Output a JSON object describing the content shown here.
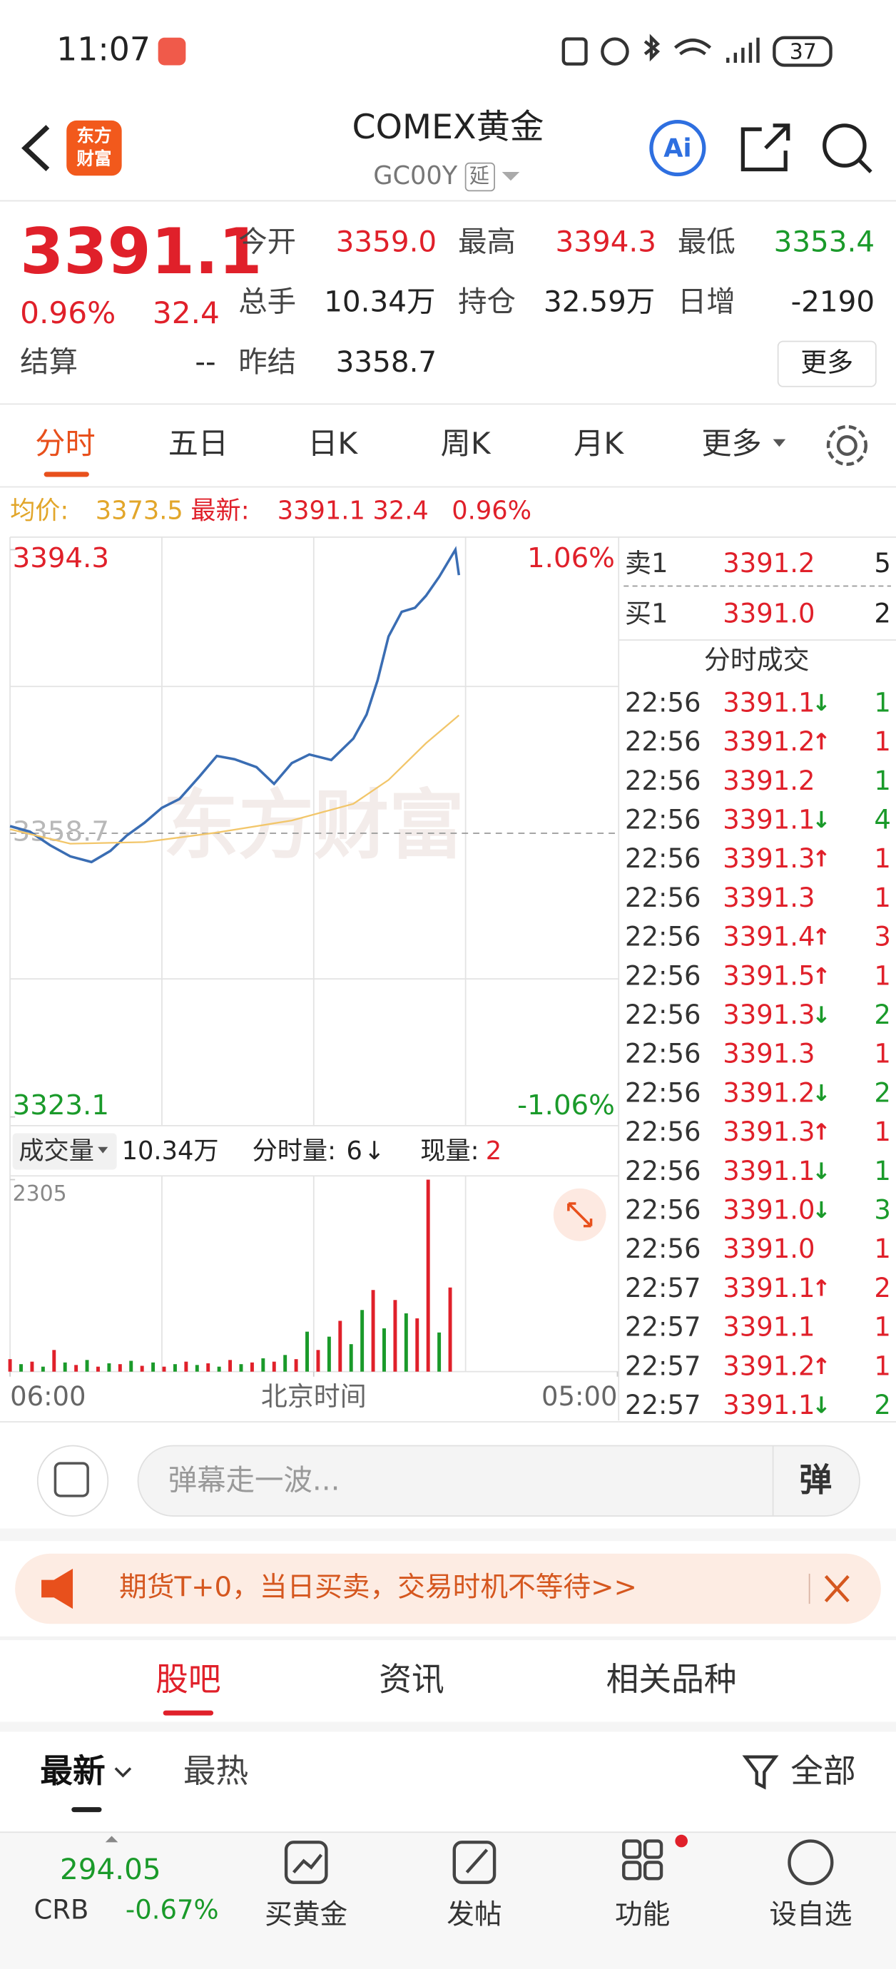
{
  "status_bar": {
    "time": "11:07",
    "battery": "37"
  },
  "header": {
    "logo": [
      "东方",
      "财富"
    ],
    "title": "COMEX黄金",
    "code": "GC00Y",
    "tag": "延",
    "ai_button": "Ai"
  },
  "quote": {
    "price": "3391.1",
    "change_pct": "0.96%",
    "change": "32.4",
    "fields": [
      {
        "label": "今开",
        "value": "3359.0"
      },
      {
        "label": "最高",
        "value": "3394.3"
      },
      {
        "label": "最低",
        "value": "3353.4"
      },
      {
        "label": "总手",
        "value": "10.34万"
      },
      {
        "label": "持仓",
        "value": "32.59万"
      },
      {
        "label": "日增",
        "value": "-2190"
      },
      {
        "label": "结算",
        "value": "--"
      },
      {
        "label": "昨结",
        "value": "3358.7"
      }
    ],
    "more": "更多"
  },
  "tabs": [
    "分时",
    "五日",
    "日K",
    "周K",
    "月K",
    "更多"
  ],
  "info_line": {
    "avg_label": "均价:",
    "avg": "3373.5",
    "latest_label": "最新:",
    "latest": "3391.1",
    "change": "32.4",
    "change_pct": "0.96%"
  },
  "chart_data": {
    "type": "line",
    "watermark": "东方财富",
    "xlim": [
      0,
      1380
    ],
    "xticks": [
      {
        "value": 0,
        "label": "06:00"
      },
      {
        "value": 690,
        "label": "北京时间"
      },
      {
        "value": 1380,
        "label": "05:00"
      }
    ],
    "ylim": [
      3323.1,
      3394.3
    ],
    "yticks": [
      3394.3,
      3358.7,
      3323.1
    ],
    "right_labels": [
      "1.06%",
      "-1.06%"
    ],
    "series": [
      {
        "color": "#3a6db3",
        "x": [
          0,
          45,
          91,
          137,
          185,
          228,
          265,
          305,
          345,
          385,
          430,
          470,
          510,
          560,
          600,
          640,
          680,
          730,
          780,
          810,
          835,
          860,
          890,
          920,
          945,
          975,
          1012,
          1020
        ],
        "values": [
          3359.6,
          3358.9,
          3357.2,
          3355.8,
          3355.1,
          3356.5,
          3358.4,
          3360.0,
          3361.9,
          3363.0,
          3365.8,
          3368.4,
          3368.0,
          3367.0,
          3364.9,
          3367.5,
          3368.6,
          3367.9,
          3370.6,
          3373.6,
          3377.9,
          3383.4,
          3386.5,
          3387.0,
          3388.5,
          3390.9,
          3394.3,
          3391.1
        ]
      },
      {
        "color": "#f2c66a",
        "x": [
          0,
          137,
          305,
          470,
          640,
          780,
          860,
          945,
          1020
        ],
        "values": [
          3359.2,
          3357.4,
          3357.6,
          3358.8,
          3360.3,
          3362.4,
          3365.4,
          3370.0,
          3373.5
        ]
      }
    ],
    "volume": {
      "ylim": [
        0,
        2305
      ],
      "yticks": [
        2305
      ],
      "x": [
        0,
        25,
        50,
        75,
        100,
        125,
        150,
        175,
        200,
        225,
        250,
        275,
        300,
        325,
        350,
        375,
        400,
        425,
        450,
        475,
        500,
        525,
        550,
        575,
        600,
        625,
        650,
        675,
        700,
        725,
        750,
        775,
        800,
        825,
        850,
        875,
        900,
        925,
        950,
        975,
        1000
      ],
      "values": [
        150,
        90,
        120,
        60,
        260,
        110,
        80,
        140,
        60,
        100,
        90,
        130,
        70,
        110,
        60,
        90,
        120,
        80,
        100,
        60,
        140,
        90,
        110,
        160,
        120,
        200,
        150,
        480,
        260,
        420,
        610,
        330,
        740,
        980,
        520,
        860,
        700,
        640,
        2305,
        470,
        1010
      ],
      "colors": [
        "#e0202a",
        "#1a9a2a",
        "#e0202a",
        "#1a9a2a",
        "#e0202a",
        "#1a9a2a",
        "#e0202a",
        "#1a9a2a",
        "#e0202a",
        "#1a9a2a",
        "#e0202a",
        "#1a9a2a",
        "#e0202a",
        "#1a9a2a",
        "#e0202a",
        "#1a9a2a",
        "#e0202a",
        "#1a9a2a",
        "#e0202a",
        "#1a9a2a",
        "#e0202a",
        "#1a9a2a",
        "#e0202a",
        "#1a9a2a",
        "#e0202a",
        "#1a9a2a",
        "#e0202a",
        "#1a9a2a",
        "#e0202a",
        "#1a9a2a",
        "#e0202a",
        "#1a9a2a",
        "#1a9a2a",
        "#e0202a",
        "#1a9a2a",
        "#e0202a",
        "#1a9a2a",
        "#e0202a",
        "#e0202a",
        "#1a9a2a",
        "#e0202a"
      ]
    }
  },
  "volume_bar": {
    "label": "成交量",
    "total": "10.34万",
    "minute_label": "分时量:",
    "minute": "6",
    "minute_arrow": "↓",
    "now_label": "现量:",
    "now": "2"
  },
  "order_book": [
    {
      "side": "卖1",
      "price": "3391.2",
      "vol": "5"
    },
    {
      "side": "买1",
      "price": "3391.0",
      "vol": "2"
    }
  ],
  "trades_title": "分时成交",
  "trades": [
    {
      "time": "22:56",
      "price": "3391.1",
      "arrow": "↓",
      "vol": "1",
      "side": "down"
    },
    {
      "time": "22:56",
      "price": "3391.2",
      "arrow": "↑",
      "vol": "1",
      "side": "up"
    },
    {
      "time": "22:56",
      "price": "3391.2",
      "vol": "1",
      "side": "down"
    },
    {
      "time": "22:56",
      "price": "3391.1",
      "arrow": "↓",
      "vol": "4",
      "side": "down"
    },
    {
      "time": "22:56",
      "price": "3391.3",
      "arrow": "↑",
      "vol": "1",
      "side": "up"
    },
    {
      "time": "22:56",
      "price": "3391.3",
      "vol": "1",
      "side": "up"
    },
    {
      "time": "22:56",
      "price": "3391.4",
      "arrow": "↑",
      "vol": "3",
      "side": "up"
    },
    {
      "time": "22:56",
      "price": "3391.5",
      "arrow": "↑",
      "vol": "1",
      "side": "up"
    },
    {
      "time": "22:56",
      "price": "3391.3",
      "arrow": "↓",
      "vol": "2",
      "side": "down"
    },
    {
      "time": "22:56",
      "price": "3391.3",
      "vol": "1",
      "side": "up"
    },
    {
      "time": "22:56",
      "price": "3391.2",
      "arrow": "↓",
      "vol": "2",
      "side": "down"
    },
    {
      "time": "22:56",
      "price": "3391.3",
      "arrow": "↑",
      "vol": "1",
      "side": "up"
    },
    {
      "time": "22:56",
      "price": "3391.1",
      "arrow": "↓",
      "vol": "1",
      "side": "down"
    },
    {
      "time": "22:56",
      "price": "3391.0",
      "arrow": "↓",
      "vol": "3",
      "side": "down"
    },
    {
      "time": "22:56",
      "price": "3391.0",
      "vol": "1",
      "side": "up"
    },
    {
      "time": "22:57",
      "price": "3391.1",
      "arrow": "↑",
      "vol": "2",
      "side": "up"
    },
    {
      "time": "22:57",
      "price": "3391.1",
      "vol": "1",
      "side": "up"
    },
    {
      "time": "22:57",
      "price": "3391.2",
      "arrow": "↑",
      "vol": "1",
      "side": "up"
    },
    {
      "time": "22:57",
      "price": "3391.1",
      "arrow": "↓",
      "vol": "2",
      "side": "down"
    }
  ],
  "comment_bar": {
    "placeholder": "弹幕走一波...",
    "button": "弹"
  },
  "banner": "期货T+0，当日买卖，交易时机不等待>>",
  "section_tabs": [
    "股吧",
    "资讯",
    "相关品种"
  ],
  "feed_tabs": [
    "最新",
    "最热"
  ],
  "filter": "全部",
  "bottom_bar": {
    "ticker_value": "294.05",
    "ticker_name": "CRB",
    "ticker_change": "-0.67%",
    "items": [
      "买黄金",
      "发帖",
      "功能",
      "设自选"
    ]
  }
}
